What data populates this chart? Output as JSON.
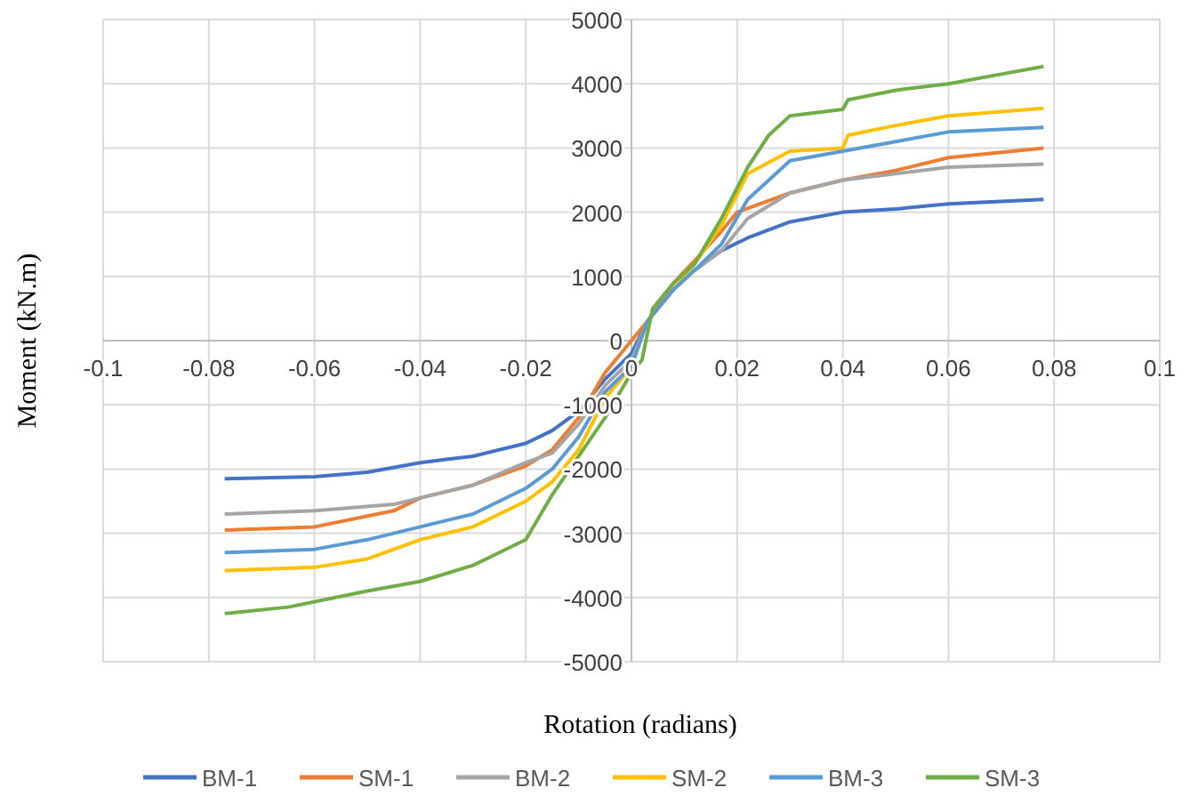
{
  "chart_data": {
    "type": "line",
    "xlabel": "Rotation (radians)",
    "ylabel": "Moment (kN.m)",
    "xlim": [
      -0.1,
      0.1
    ],
    "xticks": [
      -0.1,
      -0.08,
      -0.06,
      -0.04,
      -0.02,
      0,
      0.02,
      0.04,
      0.06,
      0.08,
      0.1
    ],
    "ylim": [
      -5000,
      5000
    ],
    "yticks": [
      -5000,
      -4000,
      -3000,
      -2000,
      -1000,
      0,
      1000,
      2000,
      3000,
      4000,
      5000
    ],
    "grid": true,
    "legend": "bottom",
    "marker": "none",
    "line_style": "solid",
    "series": [
      {
        "name": "BM-1",
        "color": "#4472c4",
        "x": [
          -0.077,
          -0.06,
          -0.05,
          -0.04,
          -0.03,
          -0.02,
          -0.015,
          -0.01,
          -0.005,
          0,
          0.003,
          0.008,
          0.012,
          0.017,
          0.022,
          0.03,
          0.04,
          0.05,
          0.06,
          0.078
        ],
        "values": [
          -2150,
          -2120,
          -2050,
          -1900,
          -1800,
          -1600,
          -1400,
          -1100,
          -600,
          -200,
          300,
          800,
          1100,
          1400,
          1600,
          1850,
          2000,
          2050,
          2130,
          2200
        ]
      },
      {
        "name": "SM-1",
        "color": "#ed7d31",
        "x": [
          -0.077,
          -0.06,
          -0.045,
          -0.04,
          -0.03,
          -0.02,
          -0.015,
          -0.01,
          -0.005,
          0,
          0.003,
          0.008,
          0.012,
          0.017,
          0.02,
          0.03,
          0.04,
          0.05,
          0.06,
          0.078
        ],
        "values": [
          -2950,
          -2900,
          -2650,
          -2450,
          -2250,
          -1950,
          -1700,
          -1200,
          -500,
          0,
          300,
          900,
          1250,
          1700,
          2000,
          2300,
          2500,
          2650,
          2850,
          3000
        ]
      },
      {
        "name": "BM-2",
        "color": "#a5a5a5",
        "x": [
          -0.077,
          -0.06,
          -0.045,
          -0.04,
          -0.03,
          -0.02,
          -0.015,
          -0.01,
          -0.005,
          0,
          0.003,
          0.008,
          0.012,
          0.017,
          0.022,
          0.03,
          0.04,
          0.05,
          0.06,
          0.078
        ],
        "values": [
          -2700,
          -2650,
          -2550,
          -2450,
          -2250,
          -1900,
          -1750,
          -1300,
          -700,
          -300,
          300,
          800,
          1100,
          1400,
          1900,
          2300,
          2500,
          2600,
          2700,
          2750
        ]
      },
      {
        "name": "SM-2",
        "color": "#ffc000",
        "x": [
          -0.077,
          -0.06,
          -0.05,
          -0.04,
          -0.03,
          -0.02,
          -0.015,
          -0.01,
          -0.005,
          0,
          0.003,
          0.008,
          0.012,
          0.017,
          0.022,
          0.03,
          0.04,
          0.041,
          0.05,
          0.06,
          0.078
        ],
        "values": [
          -3580,
          -3530,
          -3400,
          -3100,
          -2900,
          -2500,
          -2200,
          -1700,
          -900,
          -400,
          300,
          800,
          1200,
          1800,
          2600,
          2950,
          3000,
          3200,
          3350,
          3500,
          3620
        ]
      },
      {
        "name": "BM-3",
        "color": "#5b9bd5",
        "x": [
          -0.077,
          -0.06,
          -0.05,
          -0.04,
          -0.03,
          -0.02,
          -0.015,
          -0.01,
          -0.005,
          0,
          0.003,
          0.008,
          0.012,
          0.017,
          0.022,
          0.03,
          0.04,
          0.05,
          0.06,
          0.078
        ],
        "values": [
          -3300,
          -3250,
          -3100,
          -2900,
          -2700,
          -2300,
          -2000,
          -1500,
          -800,
          -400,
          300,
          800,
          1100,
          1500,
          2200,
          2800,
          2950,
          3100,
          3250,
          3320
        ]
      },
      {
        "name": "SM-3",
        "color": "#70ad47",
        "x": [
          -0.077,
          -0.065,
          -0.05,
          -0.04,
          -0.03,
          -0.02,
          -0.015,
          -0.01,
          -0.005,
          0,
          0.002,
          0.004,
          0.008,
          0.012,
          0.017,
          0.022,
          0.026,
          0.03,
          0.04,
          0.041,
          0.05,
          0.06,
          0.07,
          0.078
        ],
        "values": [
          -4250,
          -4150,
          -3900,
          -3750,
          -3500,
          -3100,
          -2400,
          -1800,
          -1200,
          -500,
          -300,
          500,
          900,
          1200,
          1900,
          2700,
          3200,
          3500,
          3600,
          3750,
          3900,
          4000,
          4150,
          4270
        ]
      }
    ]
  }
}
